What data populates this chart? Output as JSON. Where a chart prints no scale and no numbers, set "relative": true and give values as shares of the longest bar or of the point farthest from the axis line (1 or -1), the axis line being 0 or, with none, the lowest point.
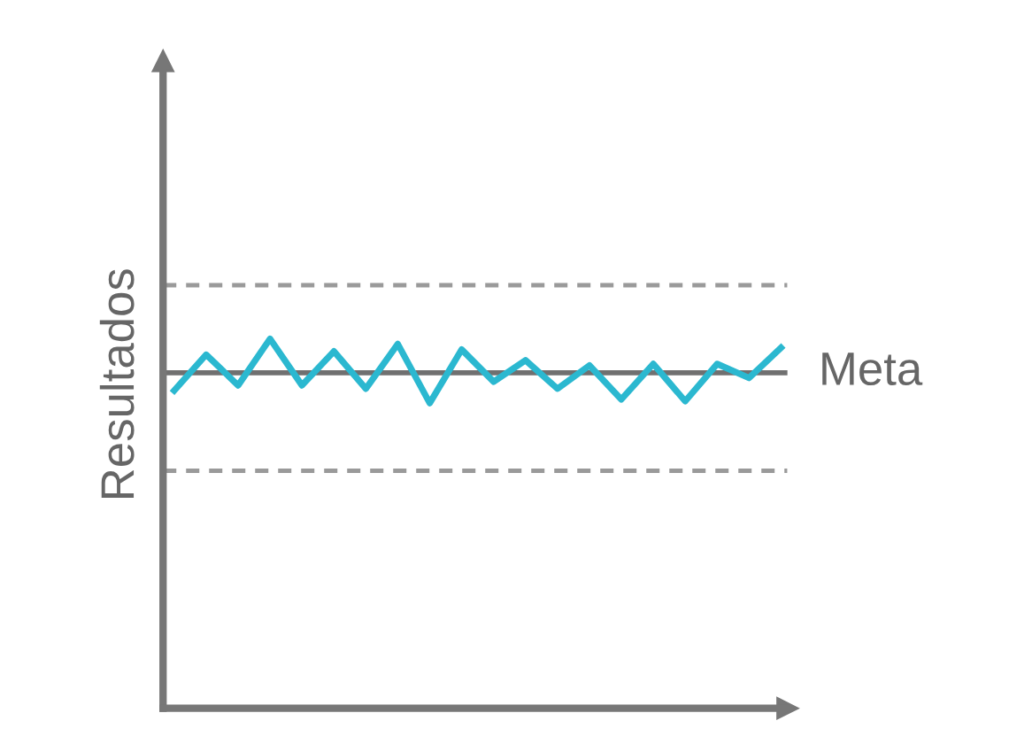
{
  "chart_data": {
    "type": "line",
    "relative": true,
    "ylabel": "Resultados",
    "categories": [
      null,
      null,
      null,
      null,
      null,
      null,
      null,
      null,
      null,
      null,
      null,
      null,
      null,
      null,
      null,
      null,
      null,
      null,
      null,
      null
    ],
    "series": [
      {
        "color": "#2bb8d0",
        "values": [
          0.86,
          0.957,
          0.874,
          1,
          0.874,
          0.966,
          0.865,
          0.986,
          0.826,
          0.971,
          0.884,
          0.942,
          0.865,
          0.928,
          0.836,
          0.932,
          0.831,
          0.932,
          0.894,
          0.976
        ]
      }
    ],
    "ref_lines": [
      {
        "axis": "y",
        "value": 0.908,
        "label": "Meta",
        "color": "#707070",
        "line_style": "solid"
      },
      {
        "axis": "y",
        "value": 1.145,
        "color": "#9a9a9a",
        "line_style": "dashed"
      },
      {
        "axis": "y",
        "value": 0.643,
        "color": "#9a9a9a",
        "line_style": "dashed"
      }
    ],
    "legend": false,
    "marker": "none",
    "line_style": "solid"
  }
}
